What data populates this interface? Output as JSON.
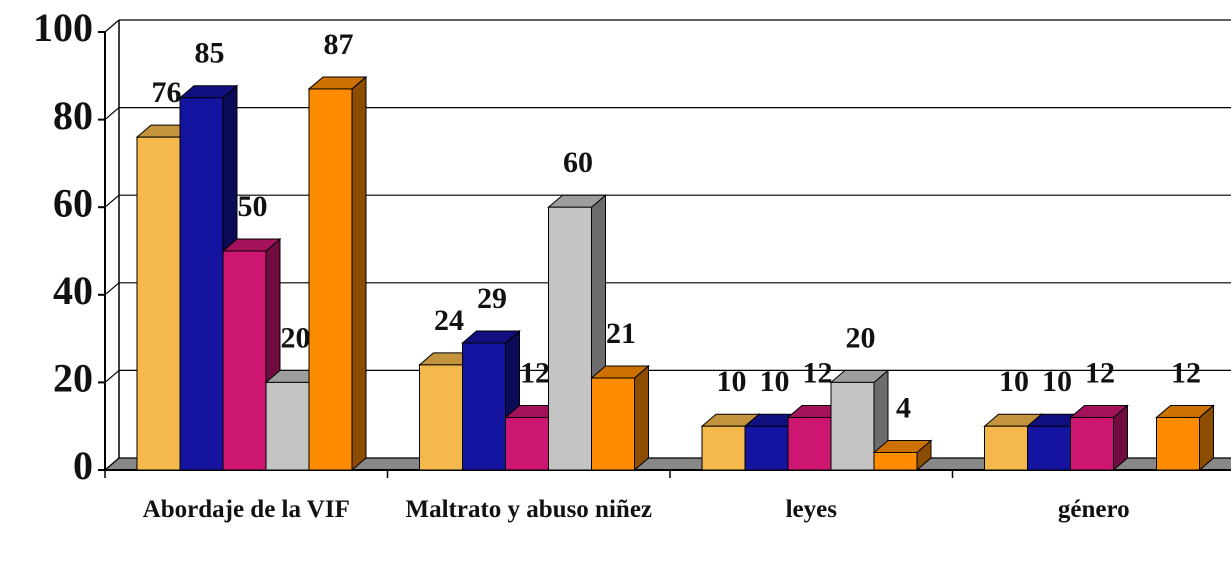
{
  "chart_data": {
    "type": "bar3d",
    "categories": [
      "Abordaje de la VIF",
      "Maltrato y abuso niñez",
      "leyes",
      "género"
    ],
    "series": [
      {
        "color": "#f4b84c",
        "values": [
          76,
          24,
          10,
          10
        ]
      },
      {
        "color": "#1414a0",
        "values": [
          85,
          29,
          10,
          10
        ]
      },
      {
        "color": "#cc1672",
        "values": [
          50,
          12,
          12,
          12
        ]
      },
      {
        "color": "#c4c4c4",
        "values": [
          20,
          60,
          20,
          null
        ]
      },
      {
        "color": "#ff8c00",
        "values": [
          87,
          21,
          4,
          12
        ]
      }
    ],
    "ylim": [
      0,
      100
    ],
    "yticks": [
      0,
      20,
      40,
      60,
      80,
      100
    ],
    "grid": true
  }
}
